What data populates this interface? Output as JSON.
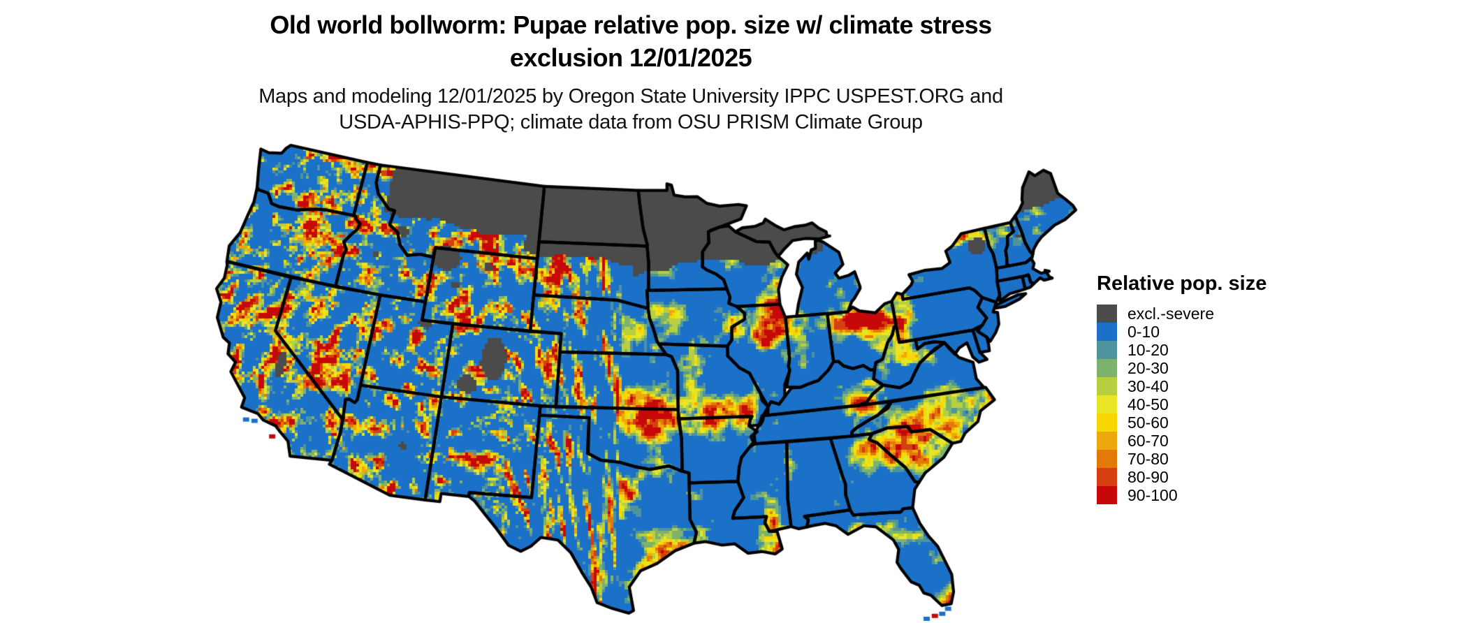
{
  "title": {
    "line1": "Old world bollworm: Pupae relative pop. size w/ climate stress",
    "line2": "exclusion 12/01/2025"
  },
  "subtitle": {
    "line1": "Maps and modeling 12/01/2025 by Oregon State University IPPC USPEST.ORG and",
    "line2": "USDA-APHIS-PPQ; climate data from OSU PRISM Climate Group"
  },
  "legend": {
    "title": "Relative pop. size",
    "entries": [
      {
        "label": "excl.-severe",
        "color": "#4b4b4b"
      },
      {
        "label": "0-10",
        "color": "#1b71c8"
      },
      {
        "label": "10-20",
        "color": "#4e939e"
      },
      {
        "label": "20-30",
        "color": "#7db26e"
      },
      {
        "label": "30-40",
        "color": "#b8cf40"
      },
      {
        "label": "40-50",
        "color": "#e8e426"
      },
      {
        "label": "50-60",
        "color": "#f6d800"
      },
      {
        "label": "60-70",
        "color": "#efa70e"
      },
      {
        "label": "70-80",
        "color": "#e17a08"
      },
      {
        "label": "80-90",
        "color": "#d63f10"
      },
      {
        "label": "90-100",
        "color": "#c60808"
      }
    ]
  },
  "map": {
    "region": "Continental United States",
    "border_color": "#000000",
    "background_color": "#ffffff"
  }
}
